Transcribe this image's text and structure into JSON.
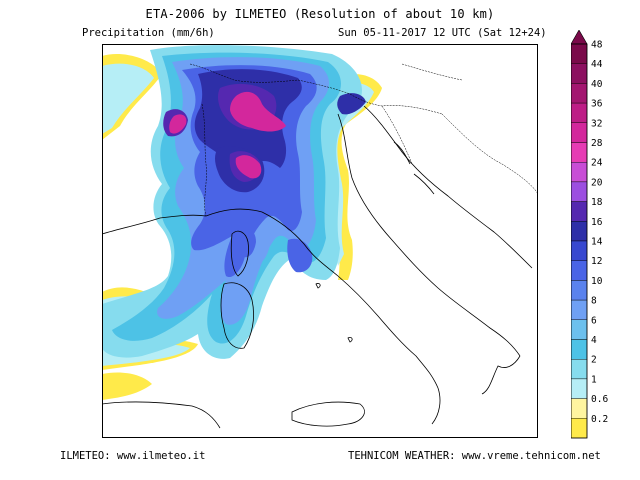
{
  "title": "ETA-2006 by ILMETEO (Resolution of about 10 km)",
  "subtitle_left": "Precipitation (mm/6h)",
  "subtitle_right": "Sun 05-11-2017 12 UTC (Sat 12+24)",
  "footer_left": "ILMETEO: www.ilmeteo.it",
  "footer_right": "TEHNICOM WEATHER: www.vreme.tehnicom.net",
  "legend": {
    "unit": "mm/6h",
    "levels": [
      {
        "label": "48",
        "color": "#7a0a4a"
      },
      {
        "label": "44",
        "color": "#8c1060"
      },
      {
        "label": "40",
        "color": "#a31670"
      },
      {
        "label": "36",
        "color": "#bd1d86"
      },
      {
        "label": "32",
        "color": "#d3279c"
      },
      {
        "label": "28",
        "color": "#e63cb4"
      },
      {
        "label": "24",
        "color": "#c84dd6"
      },
      {
        "label": "20",
        "color": "#9c4ee0"
      },
      {
        "label": "18",
        "color": "#5528b0"
      },
      {
        "label": "16",
        "color": "#2e2fa8"
      },
      {
        "label": "14",
        "color": "#3848d0"
      },
      {
        "label": "12",
        "color": "#4a64e6"
      },
      {
        "label": "10",
        "color": "#5a82ee"
      },
      {
        "label": "8",
        "color": "#6fa0f4"
      },
      {
        "label": "6",
        "color": "#6cc0ee"
      },
      {
        "label": "4",
        "color": "#4dc2e6"
      },
      {
        "label": "2",
        "color": "#86dcee"
      },
      {
        "label": "1",
        "color": "#b6eef6"
      },
      {
        "label": "0.6",
        "color": "#fff5a0"
      },
      {
        "label": "0.2",
        "color": "#ffea4a"
      }
    ]
  },
  "map": {
    "region": "Northern Italy, Corsica, Sardinia and Adriatic",
    "colors": {
      "yellow": "#ffea4a",
      "pale_cyan": "#b6eef6",
      "light_cyan": "#86dcee",
      "cyan": "#4dc2e6",
      "sky": "#6fa0f4",
      "blue": "#4a64e6",
      "dark_blue": "#2e2fa8",
      "violet": "#5528b0",
      "magenta": "#d3279c"
    }
  }
}
